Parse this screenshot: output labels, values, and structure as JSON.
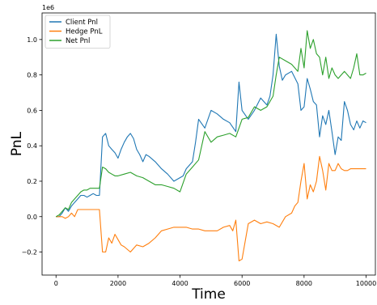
{
  "chart_data": {
    "type": "line",
    "xlabel": "Time",
    "ylabel": "PnL",
    "y_offset_label": "1e6",
    "xlim": [
      -450,
      10300
    ],
    "ylim": [
      -0.33,
      1.15
    ],
    "x_ticks": [
      0,
      2000,
      4000,
      6000,
      8000,
      10000
    ],
    "x_tick_labels": [
      "0",
      "2000",
      "4000",
      "6000",
      "8000",
      "10000"
    ],
    "y_ticks": [
      -0.2,
      0.0,
      0.2,
      0.4,
      0.6,
      0.8,
      1.0
    ],
    "y_tick_labels": [
      "−0.2",
      "0.0",
      "0.2",
      "0.4",
      "0.6",
      "0.8",
      "1.0"
    ],
    "grid": false,
    "legend_position": "top-left",
    "series": [
      {
        "name": "Client Pnl",
        "color": "#1f77b4",
        "x": [
          0,
          100,
          200,
          300,
          400,
          500,
          600,
          700,
          800,
          900,
          1000,
          1100,
          1200,
          1300,
          1400,
          1500,
          1600,
          1700,
          1800,
          1900,
          2000,
          2100,
          2200,
          2300,
          2400,
          2500,
          2600,
          2700,
          2800,
          2900,
          3000,
          3200,
          3400,
          3600,
          3800,
          4000,
          4100,
          4200,
          4400,
          4500,
          4600,
          4800,
          5000,
          5200,
          5400,
          5600,
          5800,
          5900,
          6000,
          6200,
          6400,
          6600,
          6800,
          6900,
          7000,
          7100,
          7200,
          7300,
          7400,
          7600,
          7800,
          7900,
          8000,
          8100,
          8200,
          8300,
          8400,
          8500,
          8600,
          8700,
          8800,
          8900,
          9000,
          9100,
          9200,
          9300,
          9400,
          9500,
          9600,
          9700,
          9800,
          9900,
          10000
        ],
        "values": [
          0.0,
          0.0,
          0.02,
          0.05,
          0.03,
          0.06,
          0.08,
          0.1,
          0.12,
          0.12,
          0.11,
          0.12,
          0.13,
          0.12,
          0.12,
          0.45,
          0.47,
          0.4,
          0.38,
          0.36,
          0.33,
          0.38,
          0.42,
          0.45,
          0.47,
          0.44,
          0.38,
          0.35,
          0.31,
          0.35,
          0.34,
          0.31,
          0.27,
          0.24,
          0.2,
          0.22,
          0.23,
          0.27,
          0.31,
          0.42,
          0.55,
          0.5,
          0.6,
          0.58,
          0.55,
          0.53,
          0.48,
          0.76,
          0.6,
          0.55,
          0.6,
          0.67,
          0.63,
          0.68,
          0.8,
          1.03,
          0.85,
          0.77,
          0.8,
          0.82,
          0.75,
          0.6,
          0.62,
          0.78,
          0.72,
          0.65,
          0.63,
          0.45,
          0.57,
          0.52,
          0.6,
          0.48,
          0.35,
          0.45,
          0.43,
          0.65,
          0.6,
          0.52,
          0.49,
          0.54,
          0.5,
          0.54,
          0.53
        ]
      },
      {
        "name": "Hedge PnL",
        "color": "#ff7f0e",
        "x": [
          0,
          100,
          200,
          300,
          400,
          500,
          600,
          700,
          800,
          900,
          1000,
          1100,
          1200,
          1300,
          1400,
          1500,
          1600,
          1700,
          1800,
          1900,
          2000,
          2100,
          2200,
          2400,
          2600,
          2800,
          3000,
          3200,
          3400,
          3600,
          3800,
          4000,
          4200,
          4400,
          4600,
          4800,
          5000,
          5200,
          5400,
          5600,
          5700,
          5800,
          5900,
          6000,
          6200,
          6400,
          6600,
          6800,
          7000,
          7200,
          7400,
          7600,
          7700,
          7800,
          7900,
          8000,
          8100,
          8200,
          8300,
          8400,
          8500,
          8600,
          8700,
          8800,
          8900,
          9000,
          9100,
          9200,
          9300,
          9400,
          9500,
          9600,
          9700,
          9800,
          9900,
          10000
        ],
        "values": [
          0.0,
          0.0,
          0.0,
          -0.01,
          0.0,
          0.02,
          0.0,
          0.04,
          0.04,
          0.04,
          0.04,
          0.04,
          0.04,
          0.04,
          0.04,
          -0.2,
          -0.2,
          -0.12,
          -0.15,
          -0.1,
          -0.13,
          -0.16,
          -0.17,
          -0.2,
          -0.16,
          -0.17,
          -0.15,
          -0.12,
          -0.08,
          -0.07,
          -0.06,
          -0.06,
          -0.06,
          -0.07,
          -0.07,
          -0.08,
          -0.08,
          -0.08,
          -0.06,
          -0.05,
          -0.08,
          -0.02,
          -0.25,
          -0.24,
          -0.04,
          -0.02,
          -0.04,
          -0.03,
          -0.04,
          -0.06,
          0.0,
          0.02,
          0.06,
          0.08,
          0.2,
          0.3,
          0.1,
          0.18,
          0.14,
          0.2,
          0.34,
          0.26,
          0.15,
          0.3,
          0.26,
          0.26,
          0.3,
          0.27,
          0.26,
          0.26,
          0.27,
          0.27,
          0.27,
          0.27,
          0.27,
          0.27
        ]
      },
      {
        "name": "Net Pnl",
        "color": "#2ca02c",
        "x": [
          0,
          100,
          200,
          300,
          400,
          500,
          600,
          700,
          800,
          900,
          1000,
          1100,
          1200,
          1300,
          1400,
          1500,
          1600,
          1700,
          1800,
          1900,
          2000,
          2200,
          2400,
          2600,
          2800,
          3000,
          3200,
          3400,
          3600,
          3800,
          4000,
          4200,
          4400,
          4600,
          4800,
          5000,
          5200,
          5400,
          5600,
          5800,
          5900,
          6000,
          6200,
          6400,
          6600,
          6800,
          7000,
          7100,
          7200,
          7400,
          7600,
          7800,
          7900,
          8000,
          8100,
          8200,
          8300,
          8400,
          8500,
          8600,
          8700,
          8800,
          8900,
          9000,
          9100,
          9200,
          9300,
          9400,
          9500,
          9600,
          9700,
          9800,
          9900,
          10000
        ],
        "values": [
          0.0,
          0.01,
          0.03,
          0.05,
          0.04,
          0.08,
          0.1,
          0.12,
          0.14,
          0.15,
          0.15,
          0.16,
          0.16,
          0.16,
          0.16,
          0.28,
          0.27,
          0.25,
          0.24,
          0.23,
          0.23,
          0.24,
          0.25,
          0.23,
          0.22,
          0.2,
          0.18,
          0.18,
          0.17,
          0.16,
          0.14,
          0.24,
          0.28,
          0.32,
          0.48,
          0.42,
          0.45,
          0.46,
          0.47,
          0.45,
          0.5,
          0.55,
          0.56,
          0.62,
          0.6,
          0.62,
          0.68,
          0.8,
          0.9,
          0.88,
          0.86,
          0.82,
          0.95,
          0.84,
          1.05,
          0.95,
          1.0,
          0.92,
          0.9,
          0.8,
          0.9,
          0.78,
          0.84,
          0.8,
          0.78,
          0.8,
          0.82,
          0.8,
          0.78,
          0.84,
          0.92,
          0.8,
          0.8,
          0.81
        ]
      }
    ]
  }
}
